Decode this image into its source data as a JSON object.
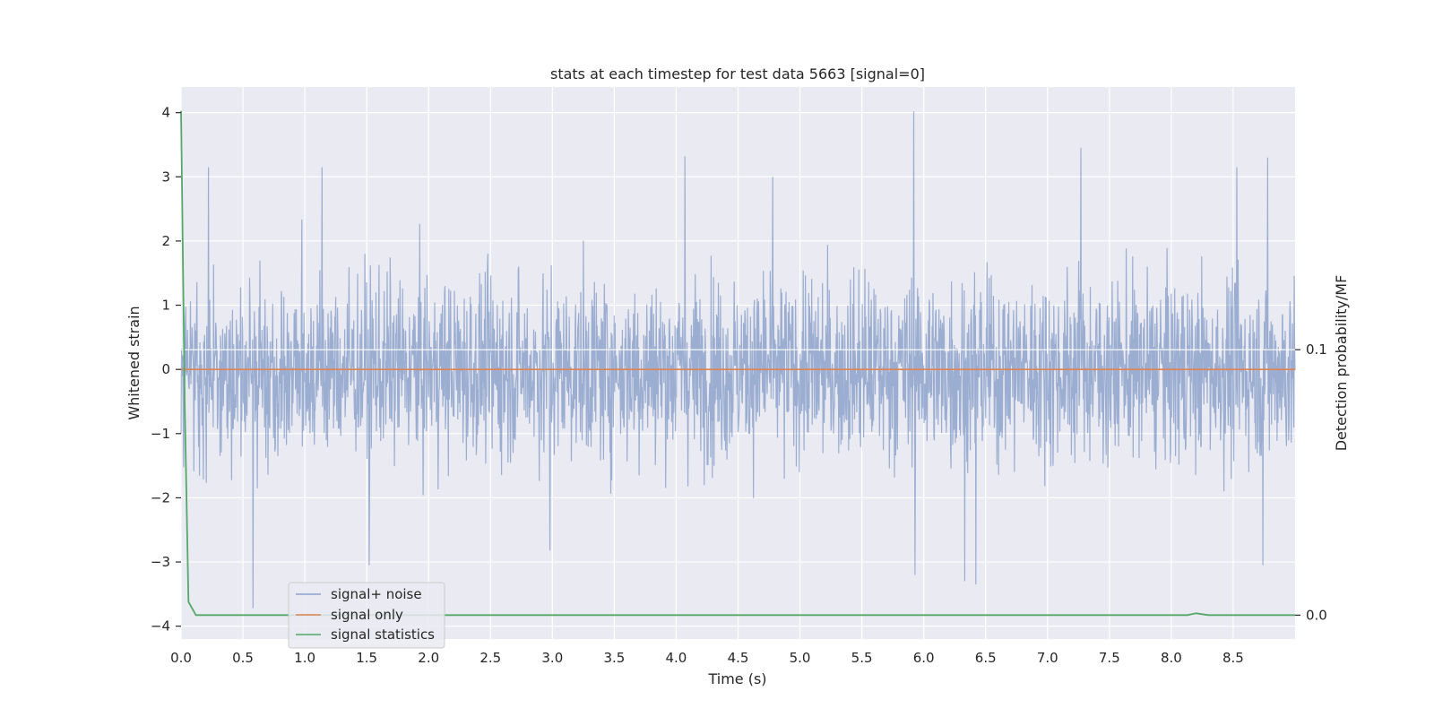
{
  "chart_data": {
    "type": "line",
    "title": "stats at each timestep for test data 5663 [signal=0]",
    "xlabel": "Time (s)",
    "ylabel": "Whitened strain",
    "ylabel_right": "Detection probability/MF",
    "xlim": [
      0,
      9.0
    ],
    "ylim": [
      -4.2,
      4.4
    ],
    "ylim_right": [
      -0.009,
      0.199
    ],
    "x_ticks": [
      "0.0",
      "0.5",
      "1.0",
      "1.5",
      "2.0",
      "2.5",
      "3.0",
      "3.5",
      "4.0",
      "4.5",
      "5.0",
      "5.5",
      "6.0",
      "6.5",
      "7.0",
      "7.5",
      "8.0",
      "8.5"
    ],
    "y_ticks": [
      "−4",
      "−3",
      "−2",
      "−1",
      "0",
      "1",
      "2",
      "3",
      "4"
    ],
    "y_ticks_right": [
      "0.0",
      "0.1"
    ],
    "grid": true,
    "legend_position": "lower-left",
    "series": [
      {
        "name": "signal+ noise",
        "color": "#4c72b0",
        "axis": "left",
        "x_range": [
          0,
          9.0
        ],
        "approx_band": [
          -2.0,
          2.2
        ],
        "peaks": [
          {
            "x": 0.22,
            "y": 3.15
          },
          {
            "x": 1.14,
            "y": 3.15
          },
          {
            "x": 4.07,
            "y": 3.32
          },
          {
            "x": 4.78,
            "y": 3.0
          },
          {
            "x": 5.92,
            "y": 4.02
          },
          {
            "x": 7.27,
            "y": 3.45
          },
          {
            "x": 8.78,
            "y": 3.3
          },
          {
            "x": 8.53,
            "y": 3.15
          }
        ],
        "troughs": [
          {
            "x": 0.58,
            "y": -3.72
          },
          {
            "x": 1.52,
            "y": -3.05
          },
          {
            "x": 2.98,
            "y": -2.82
          },
          {
            "x": 5.93,
            "y": -3.2
          },
          {
            "x": 6.33,
            "y": -3.3
          },
          {
            "x": 6.42,
            "y": -3.35
          },
          {
            "x": 8.74,
            "y": -3.05
          }
        ]
      },
      {
        "name": "signal only",
        "color": "#dd8452",
        "axis": "left",
        "x": [
          0,
          9.0
        ],
        "y": [
          0,
          0
        ]
      },
      {
        "name": "signal statistics",
        "color": "#55a868",
        "axis": "right",
        "x": [
          0.0,
          0.03,
          0.06,
          0.12,
          1.0,
          2.0,
          3.0,
          4.0,
          5.0,
          6.0,
          7.0,
          8.0,
          8.13,
          8.2,
          8.3,
          8.5,
          9.0
        ],
        "y": [
          0.19,
          0.08,
          0.005,
          0.0,
          0.0,
          0.0,
          0.0,
          0.0,
          0.0,
          0.0,
          0.0,
          0.0,
          0.0,
          0.0007,
          0.0,
          0.0,
          0.0
        ]
      }
    ]
  }
}
